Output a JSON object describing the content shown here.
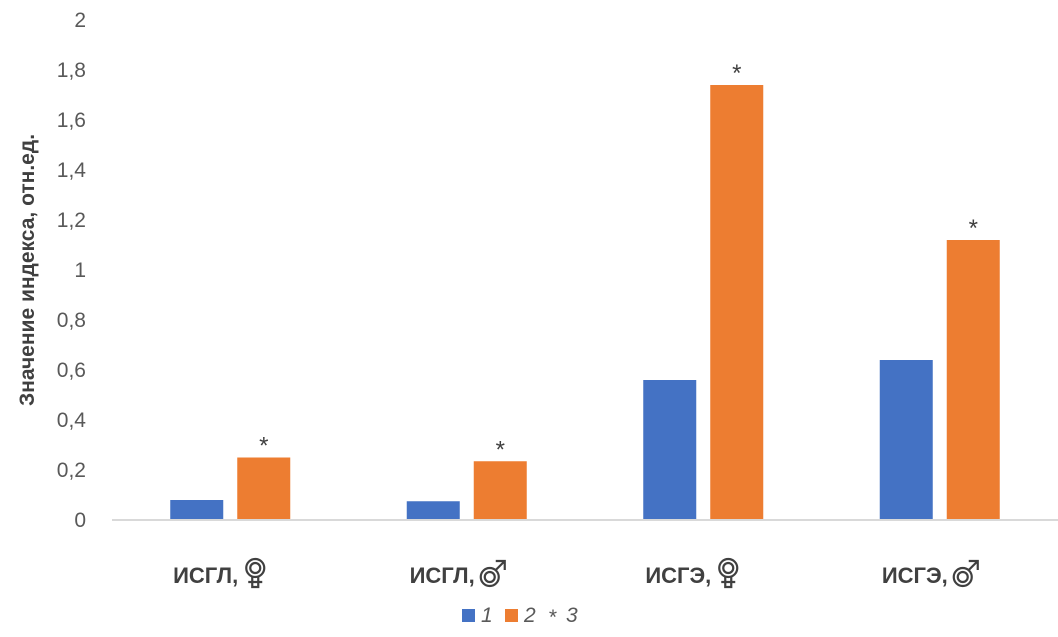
{
  "colors": {
    "series_1": "#4472C4",
    "series_2": "#ED7D31",
    "axis": "#D9D9D9",
    "text": "#404040"
  },
  "chart_data": {
    "type": "bar",
    "ylabel": "Значение индекса, отн.ед.",
    "xlabel": "",
    "ylim": [
      0,
      2
    ],
    "yticks": [
      "0",
      "0,2",
      "0,4",
      "0,6",
      "0,8",
      "1",
      "1,2",
      "1,4",
      "1,6",
      "1,8",
      "2"
    ],
    "grid": false,
    "legend_position": "bottom",
    "categories": [
      {
        "text": "ИСГЛ,",
        "symbol": "female-icon"
      },
      {
        "text": "ИСГЛ,",
        "symbol": "male-icon"
      },
      {
        "text": "ИСГЭ,",
        "symbol": "female-icon"
      },
      {
        "text": "ИСГЭ,",
        "symbol": "male-icon"
      }
    ],
    "series": [
      {
        "name": "1",
        "values": [
          0.08,
          0.075,
          0.56,
          0.64
        ]
      },
      {
        "name": "2",
        "values": [
          0.25,
          0.235,
          1.74,
          1.12
        ]
      }
    ],
    "annotations": [
      {
        "series": 1,
        "category": 0,
        "text": "*"
      },
      {
        "series": 1,
        "category": 1,
        "text": "*"
      },
      {
        "series": 1,
        "category": 2,
        "text": "*"
      },
      {
        "series": 1,
        "category": 3,
        "text": "*"
      }
    ],
    "legend": [
      {
        "marker": "square",
        "series": 0,
        "text": "1"
      },
      {
        "marker": "square",
        "series": 1,
        "text": "2"
      },
      {
        "marker": "asterisk",
        "symbol": "*",
        "text": "3"
      }
    ]
  }
}
